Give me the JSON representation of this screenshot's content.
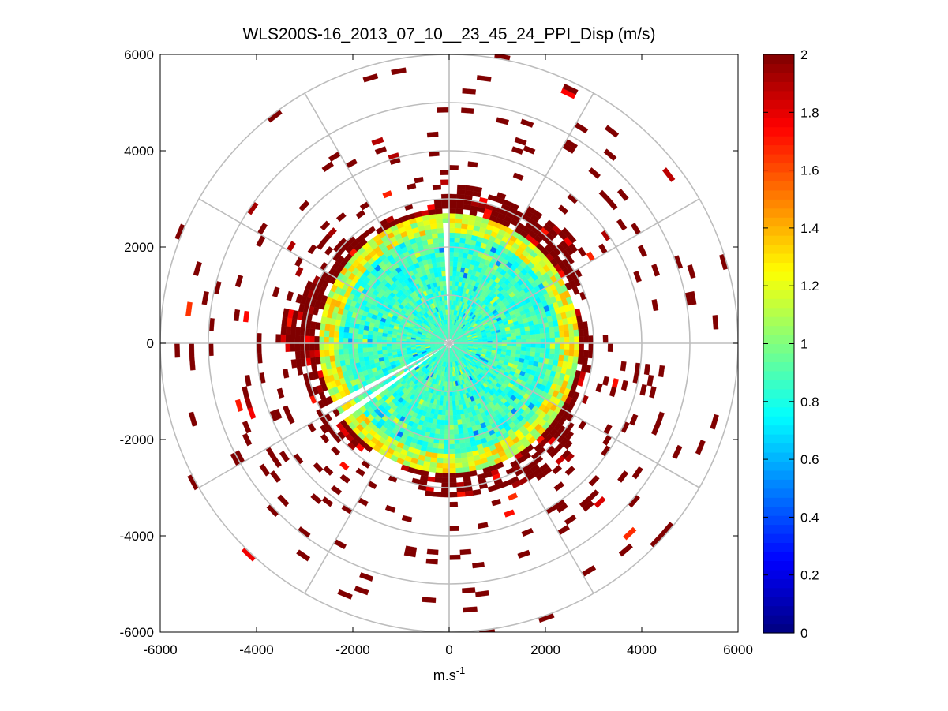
{
  "chart_data": {
    "type": "heatmap",
    "subtype": "polar-ppi-scan",
    "title": "WLS200S-16_2013_07_10__23_45_24_PPI_Disp (m/s)",
    "xlabel": "m.s",
    "xlabel_superscript": "-1",
    "ylabel": "",
    "xlim": [
      -6000,
      6000
    ],
    "ylim": [
      -6000,
      6000
    ],
    "x_ticks": [
      -6000,
      -4000,
      -2000,
      0,
      2000,
      4000,
      6000
    ],
    "y_ticks": [
      -6000,
      -4000,
      -2000,
      0,
      2000,
      4000,
      6000
    ],
    "polar_grid": {
      "rings": [
        1000,
        2000,
        3000,
        4000,
        5000,
        6000
      ],
      "spoke_angles_deg": [
        0,
        30,
        60,
        90,
        120,
        150,
        180,
        210,
        240,
        270,
        300,
        330
      ]
    },
    "colorbar": {
      "colormap": "jet",
      "clim": [
        0,
        2
      ],
      "ticks": [
        0,
        0.2,
        0.4,
        0.6,
        0.8,
        1,
        1.2,
        1.4,
        1.6,
        1.8,
        2
      ],
      "tick_labels": [
        "0",
        "0.2",
        "0.4",
        "0.6",
        "0.8",
        "1",
        "1.2",
        "1.4",
        "1.6",
        "1.8",
        "2"
      ]
    },
    "field_description": {
      "gate_spacing_m": 100,
      "beam_step_deg": 3,
      "dense_core_radius_m": 2500,
      "core_values_approx": [
        0.7,
        1.0
      ],
      "edge_band_m": [
        2500,
        3100
      ],
      "edge_values_approx": [
        1.1,
        1.6
      ],
      "outer_values": 2.0,
      "data_gaps": [
        {
          "azimuth_deg_from_north": [
            357,
            359
          ],
          "range_m": [
            0,
            2500
          ]
        },
        {
          "azimuth_deg_from_north": [
            241,
            244
          ],
          "range_m": [
            0,
            3000
          ]
        },
        {
          "azimuth_deg_from_north": [
            235,
            237
          ],
          "range_m": [
            0,
            3000
          ]
        }
      ]
    }
  }
}
